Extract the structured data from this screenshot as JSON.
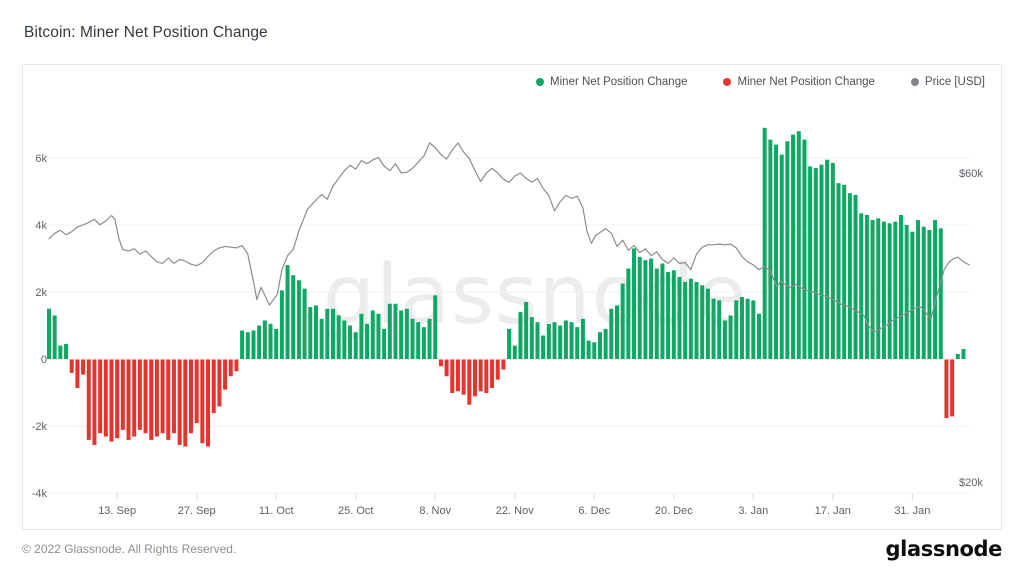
{
  "page": {
    "title": "Bitcoin: Miner Net Position Change",
    "watermark": "glassnode",
    "footer_copyright": "© 2022 Glassnode. All Rights Reserved.",
    "footer_logo": "glassnode"
  },
  "legend": [
    {
      "label": "Miner Net Position Change",
      "color": "#0ea763"
    },
    {
      "label": "Miner Net Position Change",
      "color": "#e5342e"
    },
    {
      "label": "Price [USD]",
      "color": "#808488"
    }
  ],
  "colors": {
    "positive_bar": "#0ea763",
    "negative_bar": "#e5342e",
    "price_line": "#8a8d90",
    "gridline": "#f1f2f3",
    "tick_mark": "#d9dbdd",
    "axis_text": "#5d6268",
    "panel_border": "#e7e8ea"
  },
  "chart_data": {
    "type": "bar",
    "title": "Bitcoin: Miner Net Position Change",
    "start_date": "2021-09-01",
    "bar_series": {
      "name": "Miner Net Position Change",
      "unit": "BTC (thousands)",
      "values_k": [
        1.5,
        1.3,
        0.4,
        0.45,
        -0.4,
        -0.85,
        -0.45,
        -2.4,
        -2.55,
        -2.2,
        -2.3,
        -2.45,
        -2.35,
        -2.1,
        -2.4,
        -2.3,
        -2.1,
        -2.2,
        -2.4,
        -2.3,
        -2.2,
        -2.4,
        -2.2,
        -2.55,
        -2.6,
        -2.2,
        -1.9,
        -2.5,
        -2.6,
        -1.6,
        -1.4,
        -0.9,
        -0.5,
        -0.35,
        0.85,
        0.8,
        0.85,
        1.0,
        1.15,
        1.05,
        0.9,
        2.05,
        2.8,
        2.5,
        2.35,
        2.1,
        1.55,
        1.6,
        1.2,
        1.5,
        1.5,
        1.3,
        1.15,
        1.0,
        0.8,
        1.35,
        1.05,
        1.45,
        1.35,
        0.9,
        1.65,
        1.65,
        1.45,
        1.5,
        1.2,
        1.1,
        0.95,
        1.2,
        1.9,
        -0.2,
        -0.5,
        -1.0,
        -0.95,
        -1.05,
        -1.35,
        -1.1,
        -0.95,
        -1.0,
        -0.85,
        -0.6,
        -0.3,
        0.9,
        0.4,
        1.4,
        1.7,
        1.25,
        1.1,
        0.7,
        1.05,
        1.1,
        1.0,
        1.15,
        1.1,
        0.95,
        1.2,
        0.55,
        0.5,
        0.8,
        0.9,
        1.5,
        1.6,
        2.25,
        2.7,
        3.3,
        3.05,
        2.95,
        3.0,
        2.7,
        2.85,
        2.6,
        2.65,
        2.45,
        2.3,
        2.4,
        2.3,
        2.2,
        2.1,
        1.8,
        1.75,
        1.15,
        1.3,
        1.75,
        1.85,
        1.8,
        1.75,
        1.35,
        6.9,
        6.55,
        6.4,
        6.1,
        6.5,
        6.7,
        6.8,
        6.55,
        5.75,
        5.7,
        5.8,
        5.95,
        5.85,
        5.25,
        5.2,
        4.95,
        4.9,
        4.35,
        4.3,
        4.15,
        4.2,
        4.1,
        4.05,
        4.1,
        4.3,
        4.0,
        3.8,
        4.15,
        3.95,
        3.85,
        4.15,
        3.9,
        -1.75,
        -1.7,
        0.15,
        0.3
      ]
    },
    "line_series": {
      "name": "Price [USD]",
      "unit": "USD (thousands)",
      "points": [
        [
          0,
          51.5
        ],
        [
          1,
          52.2
        ],
        [
          2,
          52.6
        ],
        [
          3,
          52.0
        ],
        [
          4,
          52.4
        ],
        [
          5,
          53.0
        ],
        [
          6,
          53.3
        ],
        [
          7,
          53.6
        ],
        [
          8,
          54.0
        ],
        [
          9,
          53.3
        ],
        [
          10,
          53.8
        ],
        [
          11,
          54.5
        ],
        [
          11.6,
          54.0
        ],
        [
          12.3,
          51.5
        ],
        [
          13,
          50.1
        ],
        [
          14,
          49.9
        ],
        [
          15,
          50.2
        ],
        [
          16,
          49.5
        ],
        [
          17,
          49.9
        ],
        [
          18,
          49.2
        ],
        [
          19,
          48.5
        ],
        [
          20,
          48.3
        ],
        [
          21,
          49.0
        ],
        [
          22,
          48.3
        ],
        [
          23,
          48.8
        ],
        [
          24,
          48.6
        ],
        [
          25,
          48.2
        ],
        [
          26,
          48.0
        ],
        [
          27,
          48.4
        ],
        [
          28,
          49.2
        ],
        [
          29,
          49.9
        ],
        [
          30,
          50.3
        ],
        [
          31,
          50.5
        ],
        [
          32,
          50.4
        ],
        [
          33,
          50.3
        ],
        [
          34,
          50.6
        ],
        [
          35,
          49.5
        ],
        [
          36,
          45.9
        ],
        [
          36.6,
          43.6
        ],
        [
          37.3,
          45.2
        ],
        [
          38,
          44.2
        ],
        [
          38.8,
          42.9
        ],
        [
          39.5,
          43.6
        ],
        [
          40.2,
          44.3
        ],
        [
          41,
          47.5
        ],
        [
          42,
          49.3
        ],
        [
          43,
          50.1
        ],
        [
          44,
          52.5
        ],
        [
          45.5,
          55.3
        ],
        [
          47,
          56.5
        ],
        [
          48,
          57.2
        ],
        [
          49,
          56.6
        ],
        [
          50,
          58.3
        ],
        [
          51,
          59.3
        ],
        [
          52,
          60.3
        ],
        [
          53,
          61.0
        ],
        [
          54,
          60.5
        ],
        [
          55,
          61.6
        ],
        [
          56,
          61.2
        ],
        [
          57,
          61.7
        ],
        [
          58,
          62.0
        ],
        [
          59,
          60.9
        ],
        [
          60,
          60.3
        ],
        [
          61,
          61.2
        ],
        [
          62,
          60.0
        ],
        [
          63,
          60.1
        ],
        [
          64,
          60.6
        ],
        [
          65,
          61.4
        ],
        [
          66,
          62.2
        ],
        [
          67,
          63.9
        ],
        [
          68,
          63.3
        ],
        [
          69,
          62.4
        ],
        [
          70,
          61.8
        ],
        [
          71,
          63.0
        ],
        [
          72,
          63.9
        ],
        [
          73,
          62.7
        ],
        [
          74,
          61.9
        ],
        [
          75,
          60.3
        ],
        [
          76,
          58.9
        ],
        [
          77,
          60.0
        ],
        [
          78,
          60.6
        ],
        [
          79,
          60.0
        ],
        [
          80,
          59.2
        ],
        [
          81,
          58.8
        ],
        [
          82,
          59.6
        ],
        [
          83,
          60.0
        ],
        [
          84,
          59.3
        ],
        [
          85,
          58.8
        ],
        [
          86,
          59.3
        ],
        [
          87,
          58.0
        ],
        [
          88,
          57.1
        ],
        [
          89,
          55.1
        ],
        [
          90,
          56.3
        ],
        [
          91,
          57.1
        ],
        [
          92,
          56.7
        ],
        [
          93,
          57.0
        ],
        [
          94,
          55.5
        ],
        [
          94.7,
          52.5
        ],
        [
          95.5,
          50.9
        ],
        [
          96.2,
          51.9
        ],
        [
          97,
          52.3
        ],
        [
          98,
          52.8
        ],
        [
          99,
          52.2
        ],
        [
          100,
          50.5
        ],
        [
          101,
          51.3
        ],
        [
          102,
          50.0
        ],
        [
          103,
          50.6
        ],
        [
          104,
          49.7
        ],
        [
          105,
          50.2
        ],
        [
          106,
          49.3
        ],
        [
          107,
          49.8
        ],
        [
          108,
          48.8
        ],
        [
          109,
          48.3
        ],
        [
          110,
          49.0
        ],
        [
          111,
          48.3
        ],
        [
          112,
          48.4
        ],
        [
          113,
          47.5
        ],
        [
          114,
          49.5
        ],
        [
          115,
          50.4
        ],
        [
          116,
          50.7
        ],
        [
          117,
          50.7
        ],
        [
          118,
          50.8
        ],
        [
          119,
          50.7
        ],
        [
          120,
          50.8
        ],
        [
          121,
          50.3
        ],
        [
          122,
          49.2
        ],
        [
          123,
          48.5
        ],
        [
          124,
          48.1
        ],
        [
          125,
          47.5
        ],
        [
          126,
          47.9
        ],
        [
          127,
          47.3
        ],
        [
          127.6,
          46.2
        ],
        [
          128.2,
          45.3
        ],
        [
          128.8,
          46.0
        ],
        [
          129.5,
          45.6
        ],
        [
          130.5,
          45.2
        ],
        [
          131.5,
          45.6
        ],
        [
          132.5,
          45.1
        ],
        [
          133.5,
          44.8
        ],
        [
          134.5,
          44.6
        ],
        [
          135.5,
          44.3
        ],
        [
          136.5,
          44.1
        ],
        [
          137.5,
          43.8
        ],
        [
          138.5,
          43.4
        ],
        [
          139.5,
          43.0
        ],
        [
          140.5,
          42.8
        ],
        [
          141.5,
          42.4
        ],
        [
          142.5,
          42.0
        ],
        [
          143.5,
          41.5
        ],
        [
          144.3,
          40.2
        ],
        [
          145,
          39.6
        ],
        [
          145.7,
          39.5
        ],
        [
          146.5,
          39.9
        ],
        [
          147.5,
          40.3
        ],
        [
          148.5,
          40.9
        ],
        [
          149.5,
          41.3
        ],
        [
          150.5,
          41.7
        ],
        [
          151.5,
          42.1
        ],
        [
          152.5,
          42.5
        ],
        [
          153.3,
          42.7
        ],
        [
          154,
          42.3
        ],
        [
          154.7,
          41.6
        ],
        [
          155.3,
          41.2
        ],
        [
          156,
          43.3
        ],
        [
          156.8,
          45.4
        ],
        [
          157.6,
          47.5
        ],
        [
          158.4,
          48.4
        ],
        [
          159.2,
          48.9
        ],
        [
          160,
          49.1
        ],
        [
          161,
          48.5
        ],
        [
          162,
          48.1
        ]
      ]
    },
    "y_left": {
      "title": "Miner Net Position Change",
      "ticks": [
        {
          "label": "6k",
          "value": 6
        },
        {
          "label": "4k",
          "value": 4
        },
        {
          "label": "2k",
          "value": 2
        },
        {
          "label": "0",
          "value": 0
        },
        {
          "label": "-2k",
          "value": -2
        },
        {
          "label": "-4k",
          "value": -4
        }
      ],
      "min": -4000,
      "max": 7000
    },
    "y_right": {
      "title": "Price [USD]",
      "ticks": [
        {
          "label": "$60k",
          "price": 60
        },
        {
          "label": "$20k",
          "price": 20
        }
      ],
      "min": 20000,
      "max": 60000
    },
    "x_ticks": [
      {
        "label": "13. Sep",
        "day": 12
      },
      {
        "label": "27. Sep",
        "day": 26
      },
      {
        "label": "11. Oct",
        "day": 40
      },
      {
        "label": "25. Oct",
        "day": 54
      },
      {
        "label": "8. Nov",
        "day": 68
      },
      {
        "label": "22. Nov",
        "day": 82
      },
      {
        "label": "6. Dec",
        "day": 96
      },
      {
        "label": "20. Dec",
        "day": 110
      },
      {
        "label": "3. Jan",
        "day": 124
      },
      {
        "label": "17. Jan",
        "day": 138
      },
      {
        "label": "31. Jan",
        "day": 152
      }
    ],
    "grid": "horizontal-only",
    "legend_position": "top-right"
  }
}
